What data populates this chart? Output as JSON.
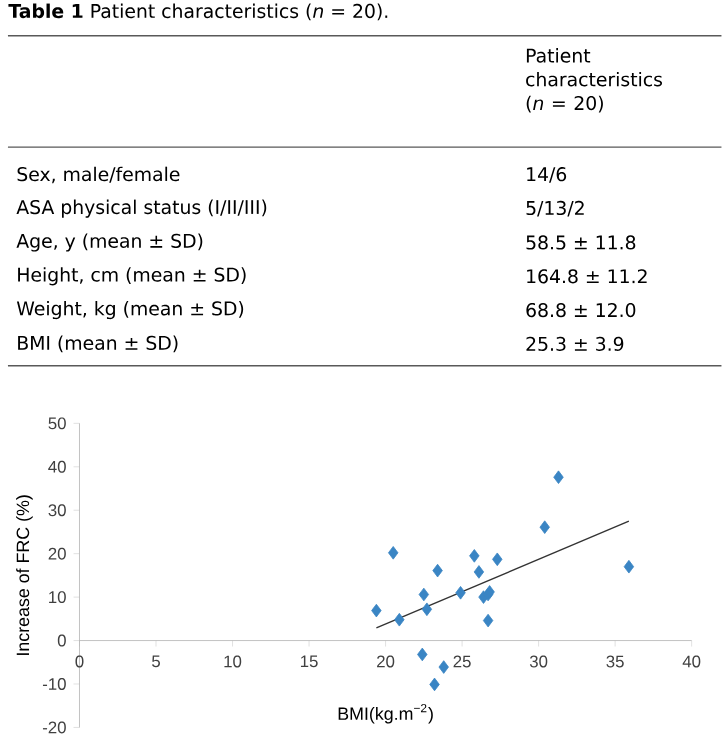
{
  "chart_data": [
    {
      "type": "other",
      "title": "**Table 1**   Patient characteristics (*n* = 20).",
      "annotations": [
        "Patient characteristics (*n* = 20)",
        "Sex, male/female",
        "14/6",
        "ASA physical status (I/II/III)",
        "5/13/2",
        "Age, y (mean ± SD)",
        "58.5 ± 11.8",
        "Height, cm (mean ± SD)",
        "164.8 ± 11.2",
        "Weight, kg (mean ± SD)",
        "68.8 ± 12.0",
        "BMI (mean ± SD)",
        "25.3 ± 3.9"
      ]
    },
    {
      "type": "scatter",
      "xlabel": "BMI(kg.m$^{−2}$)",
      "ylabel": "Increase of FRC (%)",
      "xlim": [
        0,
        40
      ],
      "ylim": [
        -20,
        50
      ],
      "xticks": [
        0,
        5,
        10,
        15,
        20,
        25,
        30,
        35,
        40
      ],
      "yticks": [
        -20,
        -10,
        0,
        10,
        20,
        30,
        40,
        50
      ],
      "grid": false,
      "marker": "diamond",
      "series": [
        {
          "type": "scatter",
          "color": "#3a85c4",
          "x": [
            19.4,
            20.9,
            20.5,
            22.5,
            22.7,
            22.4,
            23.4,
            23.2,
            23.8,
            24.9,
            25.8,
            26.1,
            26.4,
            26.7,
            26.8,
            26.7,
            27.3,
            30.4,
            31.3,
            35.9
          ],
          "values": [
            6.9,
            4.8,
            20.2,
            10.6,
            7.2,
            -3.2,
            16.1,
            -10.1,
            -6.1,
            11.0,
            19.5,
            15.8,
            10.0,
            10.6,
            11.2,
            4.6,
            18.7,
            26.1,
            37.6,
            17.0
          ]
        },
        {
          "type": "line",
          "color": "#333333",
          "marker": "none",
          "x": [
            19.4,
            35.9
          ],
          "values": [
            2.9,
            27.5
          ]
        }
      ]
    }
  ]
}
